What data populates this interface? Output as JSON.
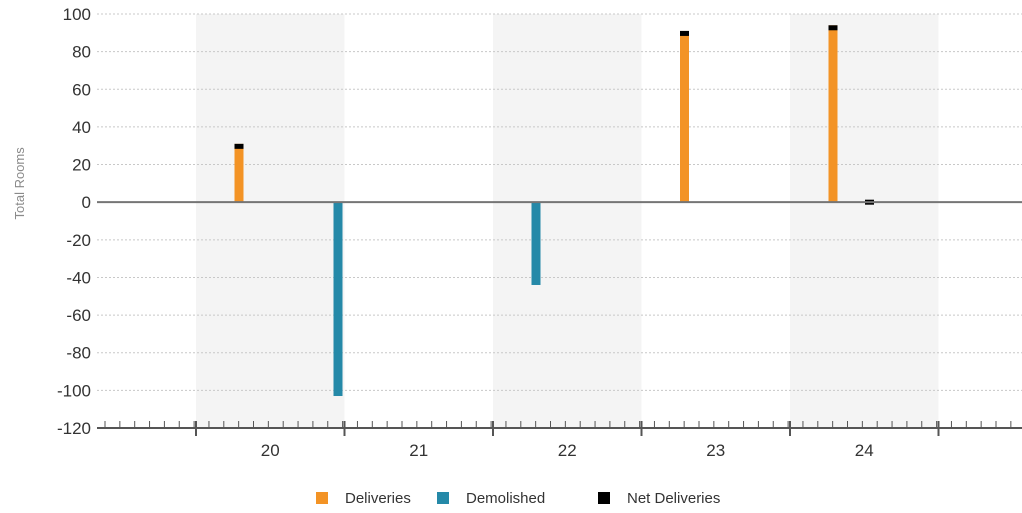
{
  "chart_data": {
    "type": "bar",
    "ylabel": "Total Rooms",
    "ylim": [
      -120,
      100
    ],
    "yticks": [
      100,
      80,
      60,
      40,
      20,
      0,
      -20,
      -40,
      -60,
      -80,
      -100,
      -120
    ],
    "categories": [
      "20",
      "21",
      "22",
      "23",
      "24"
    ],
    "grid": true,
    "legend_position": "bottom",
    "series": [
      {
        "name": "Deliveries",
        "color": "#f39325",
        "values": [
          31,
          0,
          0,
          91,
          94
        ]
      },
      {
        "name": "Demolished",
        "color": "#2589a8",
        "values": [
          0,
          -103,
          -44,
          0,
          0
        ]
      },
      {
        "name": "Net Deliveries",
        "color": "#000000",
        "values": [
          31,
          -103,
          -44,
          91,
          94
        ]
      }
    ],
    "colors": {
      "gridline": "#c8c8c8",
      "zero_line": "#757575",
      "shade": "#f4f4f4",
      "axis": "#555555"
    }
  }
}
